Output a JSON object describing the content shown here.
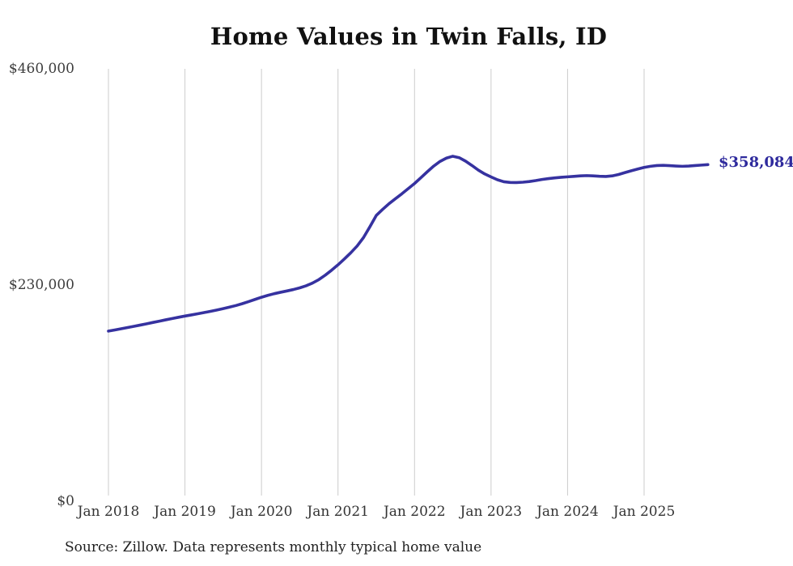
{
  "chart_data": {
    "type": "line",
    "title": "Home Values in Twin Falls, ID",
    "source_note": "Source: Zillow. Data represents monthly typical home value",
    "end_label": "$358,084",
    "end_value": 358084,
    "line_color": "#3632a0",
    "end_label_color": "#2e2a9d",
    "grid_color": "#cccccc",
    "legend": "none",
    "grid": "vertical-only",
    "y_axis": {
      "min": 0,
      "max": 460000,
      "ticks": [
        {
          "value": 0,
          "label": "$0"
        },
        {
          "value": 230000,
          "label": "$230,000"
        },
        {
          "value": 460000,
          "label": "$460,000"
        }
      ]
    },
    "x_tick_labels": [
      "Jan 2018",
      "Jan 2019",
      "Jan 2020",
      "Jan 2021",
      "Jan 2022",
      "Jan 2023",
      "Jan 2024",
      "Jan 2025"
    ],
    "series": [
      {
        "name": "Monthly typical home value",
        "start_month": "Jan 2018",
        "end_month": "Nov 2025",
        "interval": "monthly",
        "values": [
          181000,
          182200,
          183500,
          184800,
          186100,
          187400,
          188800,
          190200,
          191600,
          193000,
          194400,
          195700,
          197000,
          198200,
          199400,
          200700,
          202000,
          203400,
          204900,
          206500,
          208200,
          210200,
          212400,
          214700,
          217000,
          219000,
          220800,
          222300,
          223700,
          225200,
          227000,
          229200,
          232100,
          235800,
          240500,
          245800,
          251500,
          257700,
          264300,
          271500,
          280500,
          292000,
          304000,
          310500,
          316500,
          321800,
          327000,
          332500,
          338000,
          344200,
          350500,
          356500,
          361500,
          365000,
          367000,
          365500,
          361800,
          357200,
          352300,
          348200,
          345000,
          342000,
          339900,
          339100,
          339000,
          339400,
          340100,
          341100,
          342300,
          343200,
          344000,
          344600,
          345100,
          345600,
          346100,
          346400,
          346100,
          345700,
          345500,
          346100,
          347600,
          349600,
          351600,
          353400,
          355100,
          356300,
          357100,
          357300,
          357000,
          356600,
          356300,
          356600,
          357100,
          357600,
          358084
        ]
      }
    ]
  }
}
